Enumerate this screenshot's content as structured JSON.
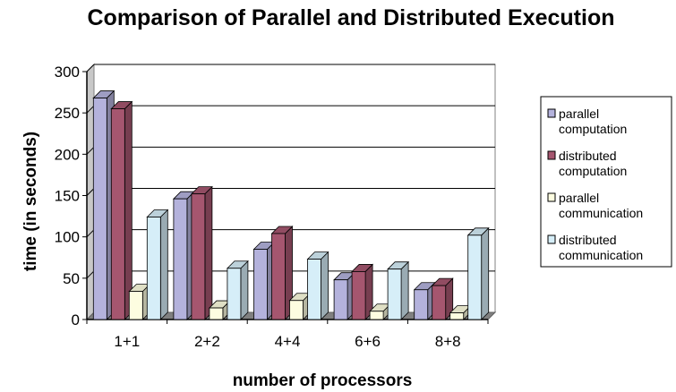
{
  "chart_data": {
    "type": "bar",
    "title": "Comparison of Parallel and Distributed Execution",
    "xlabel": "number of processors",
    "ylabel": "time (in seconds)",
    "categories": [
      "1+1",
      "2+2",
      "4+4",
      "6+6",
      "8+8"
    ],
    "ylim": [
      0,
      300
    ],
    "yticks": [
      "0",
      "50",
      "100",
      "150",
      "200",
      "250",
      "300"
    ],
    "grid": true,
    "legend_position": "right",
    "series": [
      {
        "name": "parallel computation",
        "values": [
          268,
          146,
          85,
          48,
          36
        ],
        "color": "#b4b2dc"
      },
      {
        "name": "distributed computation",
        "values": [
          255,
          152,
          104,
          58,
          41
        ],
        "color": "#a5566f"
      },
      {
        "name": "parallel communication",
        "values": [
          34,
          14,
          23,
          10,
          8
        ],
        "color": "#fdfde0"
      },
      {
        "name": "distributed communication",
        "values": [
          124,
          62,
          73,
          61,
          102
        ],
        "color": "#d6eef8"
      }
    ]
  }
}
